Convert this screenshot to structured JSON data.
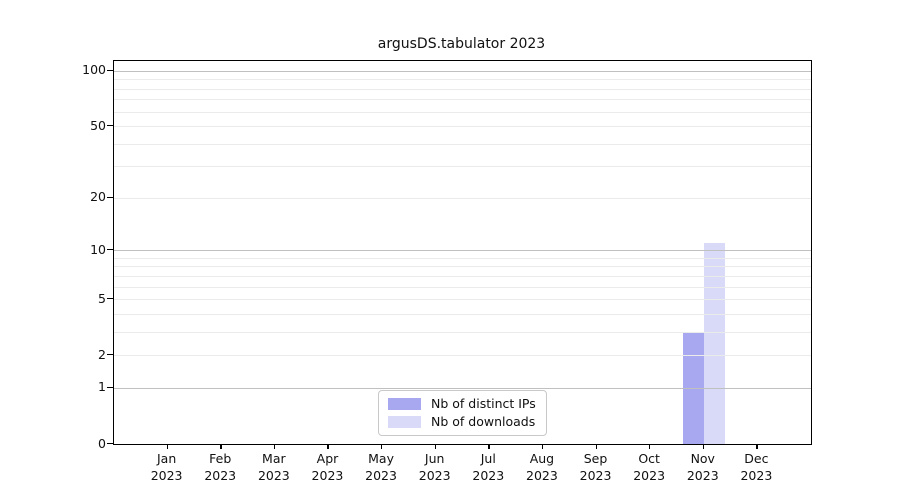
{
  "chart_data": {
    "type": "bar",
    "title": "argusDS.tabulator 2023",
    "categories": [
      "Jan 2023",
      "Feb 2023",
      "Mar 2023",
      "Apr 2023",
      "May 2023",
      "Jun 2023",
      "Jul 2023",
      "Aug 2023",
      "Sep 2023",
      "Oct 2023",
      "Nov 2023",
      "Dec 2023"
    ],
    "series": [
      {
        "name": "Nb of distinct IPs",
        "color": "#a8a8f0",
        "values": [
          0,
          0,
          0,
          0,
          0,
          0,
          0,
          0,
          0,
          0,
          3,
          0
        ]
      },
      {
        "name": "Nb of downloads",
        "color": "#d9d9f8",
        "values": [
          0,
          0,
          0,
          0,
          0,
          0,
          0,
          0,
          0,
          0,
          11,
          0
        ]
      }
    ],
    "xlabel": "",
    "ylabel": "",
    "yscale": "log1p",
    "ylim": [
      0,
      113
    ],
    "y_tick_values": [
      0,
      1,
      2,
      5,
      10,
      20,
      50,
      100
    ],
    "y_major_gridlines": [
      1,
      10,
      100
    ],
    "y_minor_gridlines": [
      2,
      3,
      4,
      5,
      6,
      7,
      8,
      9,
      20,
      30,
      40,
      50,
      60,
      70,
      80,
      90
    ],
    "grid": "on",
    "legend_position": "lower center",
    "colors": {
      "major_grid": "#c0c0c0",
      "minor_grid": "#ebebeb",
      "axis": "#000000",
      "background": "#ffffff"
    }
  }
}
